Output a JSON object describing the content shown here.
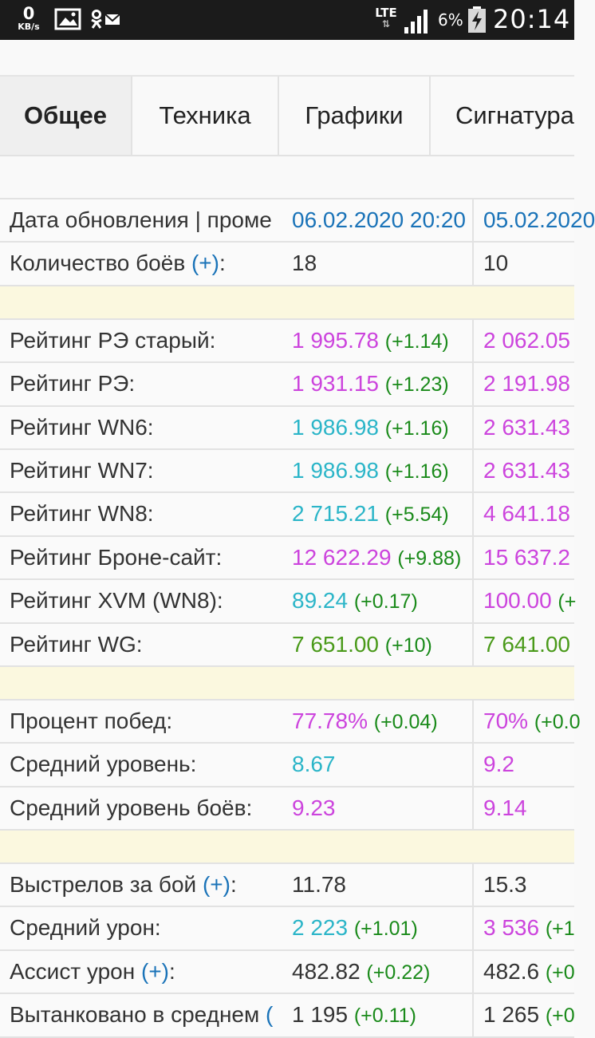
{
  "statusbar": {
    "speed_value": "0",
    "speed_unit": "KB/s",
    "network": "LTE",
    "battery_percent": "6%",
    "time": "20:14"
  },
  "tabs": [
    {
      "label": "Общее",
      "active": true
    },
    {
      "label": "Техника",
      "active": false
    },
    {
      "label": "Графики",
      "active": false
    },
    {
      "label": "Сигнатура",
      "active": false
    }
  ],
  "colors": {
    "value_purple": "#cc44dd",
    "value_cyan": "#2bb5c8",
    "value_green": "#4a9a1a",
    "delta_green": "#1a8a1a",
    "link_blue": "#1a73b8",
    "separator_yellow": "#fbf8df"
  },
  "rows": [
    {
      "label": "Дата обновления | проме",
      "plus": "",
      "c1": "06.02.2020 20:20",
      "c1_delta": "",
      "c2": "05.02.2020",
      "c2_delta": ""
    },
    {
      "label": "Количество боёв ",
      "plus": "(+)",
      "suffix": ":",
      "c1": "18",
      "c1_delta": "",
      "c2": "10",
      "c2_delta": ""
    },
    {
      "separator": true
    },
    {
      "label": "Рейтинг РЭ старый:",
      "c1": "1 995.78",
      "c1_delta": "(+1.14)",
      "c2": "2 062.05",
      "c2_delta": ""
    },
    {
      "label": "Рейтинг РЭ:",
      "c1": "1 931.15",
      "c1_delta": "(+1.23)",
      "c2": "2 191.98",
      "c2_delta": ""
    },
    {
      "label": "Рейтинг WN6:",
      "c1": "1 986.98",
      "c1_delta": "(+1.16)",
      "c2": "2 631.43",
      "c2_delta": ""
    },
    {
      "label": "Рейтинг WN7:",
      "c1": "1 986.98",
      "c1_delta": "(+1.16)",
      "c2": "2 631.43",
      "c2_delta": ""
    },
    {
      "label": "Рейтинг WN8:",
      "c1": "2 715.21",
      "c1_delta": "(+5.54)",
      "c2": "4 641.18",
      "c2_delta": ""
    },
    {
      "label": "Рейтинг Броне-сайт:",
      "c1": "12 622.29",
      "c1_delta": "(+9.88)",
      "c2": "15 637.2",
      "c2_delta": ""
    },
    {
      "label": "Рейтинг XVM (WN8):",
      "c1": "89.24",
      "c1_delta": "(+0.17)",
      "c2": "100.00",
      "c2_delta": "(+"
    },
    {
      "label": "Рейтинг WG:",
      "c1": "7 651.00",
      "c1_delta": "(+10)",
      "c2": "7 641.00",
      "c2_delta": ""
    },
    {
      "separator": true
    },
    {
      "label": "Процент побед:",
      "c1": "77.78%",
      "c1_delta": "(+0.04)",
      "c2": "70%",
      "c2_delta": "(+0.0"
    },
    {
      "label": "Средний уровень:",
      "c1": "8.67",
      "c1_delta": "",
      "c2": "9.2",
      "c2_delta": ""
    },
    {
      "label": "Средний уровень боёв:",
      "c1": "9.23",
      "c1_delta": "",
      "c2": "9.14",
      "c2_delta": ""
    },
    {
      "separator": true
    },
    {
      "label": "Выстрелов за бой ",
      "plus": "(+)",
      "suffix": ":",
      "c1": "11.78",
      "c1_delta": "",
      "c2": "15.3",
      "c2_delta": ""
    },
    {
      "label": "Средний урон:",
      "c1": "2 223",
      "c1_delta": "(+1.01)",
      "c2": "3 536",
      "c2_delta": "(+1"
    },
    {
      "label": "Ассист урон ",
      "plus": "(+)",
      "suffix": ":",
      "c1": "482.82",
      "c1_delta": "(+0.22)",
      "c2": "482.6",
      "c2_delta": "(+0"
    },
    {
      "label": "Вытанковано в среднем ",
      "plus": "(",
      "suffix": "",
      "c1": "1 195",
      "c1_delta": "(+0.11)",
      "c2": "1 265",
      "c2_delta": "(+0"
    }
  ]
}
